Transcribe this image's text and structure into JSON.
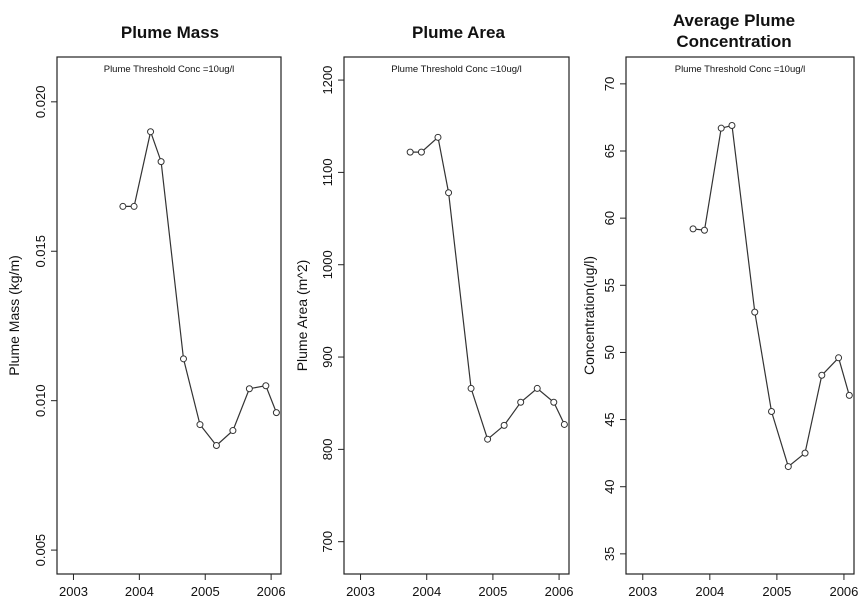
{
  "chart_data": [
    {
      "type": "line",
      "title": "Plume Mass",
      "annotation": "Plume Threshold Conc =10ug/l",
      "ylabel": "Plume Mass (kg/m)",
      "xlabel": "",
      "x": [
        2003.75,
        2003.92,
        2004.17,
        2004.33,
        2004.67,
        2004.92,
        2005.17,
        2005.42,
        2005.67,
        2005.92,
        2006.08
      ],
      "y": [
        0.0165,
        0.0165,
        0.019,
        0.018,
        0.0114,
        0.0092,
        0.0085,
        0.009,
        0.0104,
        0.0105,
        0.0096
      ],
      "xlim": [
        2002.75,
        2006.15
      ],
      "ylim": [
        0.0042,
        0.0215
      ],
      "xticks": [
        2003,
        2004,
        2005,
        2006
      ],
      "xtick_labels": [
        "2003",
        "2004",
        "2005",
        "2006"
      ],
      "yticks": [
        0.005,
        0.01,
        0.015,
        0.02
      ],
      "ytick_labels": [
        "0.005",
        "0.010",
        "0.015",
        "0.020"
      ],
      "grid": false,
      "legend": "none"
    },
    {
      "type": "line",
      "title": "Plume Area",
      "annotation": "Plume Threshold Conc =10ug/l",
      "ylabel": "Plume Area (m^2)",
      "xlabel": "",
      "x": [
        2003.75,
        2003.92,
        2004.17,
        2004.33,
        2004.67,
        2004.92,
        2005.17,
        2005.42,
        2005.67,
        2005.92,
        2006.08
      ],
      "y": [
        1122,
        1122,
        1138,
        1078,
        866,
        811,
        826,
        851,
        866,
        851,
        827
      ],
      "xlim": [
        2002.75,
        2006.15
      ],
      "ylim": [
        665,
        1225
      ],
      "xticks": [
        2003,
        2004,
        2005,
        2006
      ],
      "xtick_labels": [
        "2003",
        "2004",
        "2005",
        "2006"
      ],
      "yticks": [
        700,
        800,
        900,
        1000,
        1100,
        1200
      ],
      "ytick_labels": [
        "700",
        "800",
        "900",
        "1000",
        "1100",
        "1200"
      ],
      "grid": false,
      "legend": "none"
    },
    {
      "type": "line",
      "title": "Average Plume Concentration",
      "annotation": "Plume Threshold Conc =10ug/l",
      "ylabel": "Concentration(ug/l)",
      "xlabel": "",
      "x": [
        2003.75,
        2003.92,
        2004.17,
        2004.33,
        2004.67,
        2004.92,
        2005.17,
        2005.42,
        2005.67,
        2005.92,
        2006.08
      ],
      "y": [
        59.2,
        59.1,
        66.7,
        66.9,
        53.0,
        45.6,
        41.5,
        42.5,
        48.3,
        49.6,
        46.8
      ],
      "xlim": [
        2002.75,
        2006.15
      ],
      "ylim": [
        33.5,
        72.0
      ],
      "xticks": [
        2003,
        2004,
        2005,
        2006
      ],
      "xtick_labels": [
        "2003",
        "2004",
        "2005",
        "2006"
      ],
      "yticks": [
        35,
        40,
        45,
        50,
        55,
        60,
        65,
        70
      ],
      "ytick_labels": [
        "35",
        "40",
        "45",
        "50",
        "55",
        "60",
        "65",
        "70"
      ],
      "grid": false,
      "legend": "none"
    }
  ]
}
